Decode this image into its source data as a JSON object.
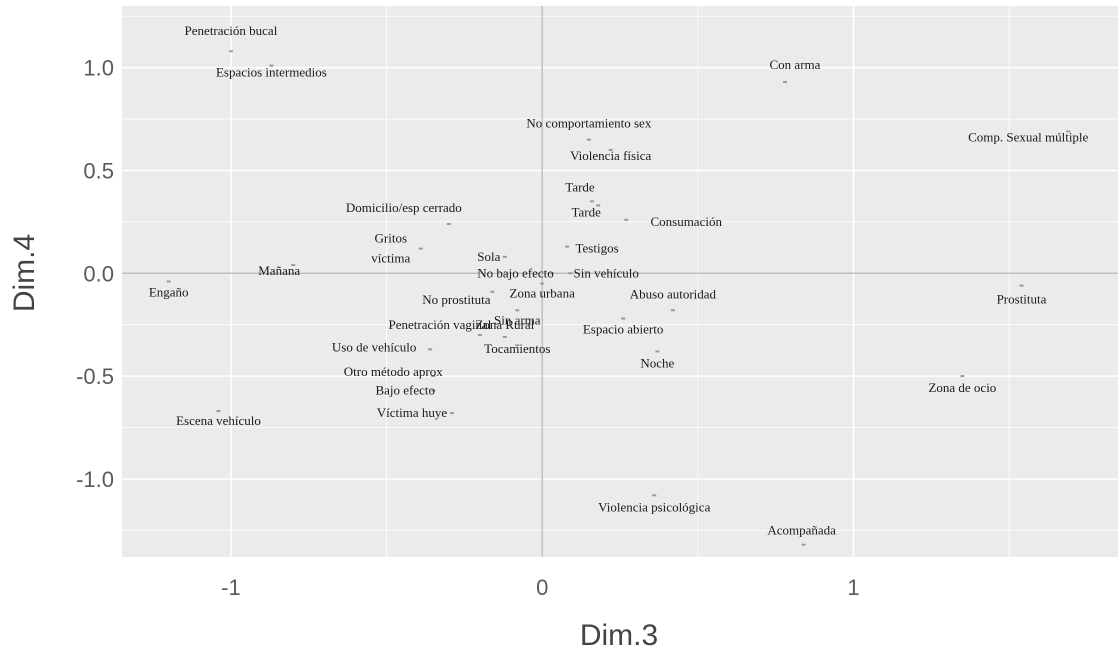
{
  "chart_data": {
    "type": "scatter",
    "title": "",
    "xlabel": "Dim.3",
    "ylabel": "Dim.4",
    "xlim": [
      -1.35,
      1.85
    ],
    "ylim": [
      -1.38,
      1.3
    ],
    "xticks": [
      -1,
      0,
      1
    ],
    "xtick_labels": [
      "-1",
      "0",
      "1"
    ],
    "yticks": [
      -1.0,
      -0.5,
      0.0,
      0.5,
      1.0
    ],
    "ytick_labels": [
      "-1.0",
      "-0.5",
      "0.0",
      "0.5",
      "1.0"
    ],
    "grid": true,
    "reference_lines": {
      "x": 0,
      "y": 0
    },
    "colors": {
      "panel": "#ebebeb",
      "grid": "#ffffff",
      "reference": "#b0b0b0",
      "point": "#9a9a9a",
      "text": "#1a1a1a"
    },
    "points": [
      {
        "label": "Penetración bucal",
        "x": -1.0,
        "y": 1.08
      },
      {
        "label": "Espacios intermedios",
        "x": -0.87,
        "y": 1.01
      },
      {
        "label": "Con arma",
        "x": 0.78,
        "y": 0.93
      },
      {
        "label": "Comp. Sexual múltiple",
        "x": 1.69,
        "y": 0.69
      },
      {
        "label": "No comportamiento sex",
        "x": 0.15,
        "y": 0.65
      },
      {
        "label": "Violencia física",
        "x": 0.22,
        "y": 0.6
      },
      {
        "label": "Tarde",
        "x": 0.16,
        "y": 0.35
      },
      {
        "label": "Tarde",
        "x": 0.18,
        "y": 0.33
      },
      {
        "label": "Consumación",
        "x": 0.27,
        "y": 0.26
      },
      {
        "label": "Domicilio/esp cerrado",
        "x": -0.3,
        "y": 0.24
      },
      {
        "label": "Gritos víctima",
        "x": -0.39,
        "y": 0.12
      },
      {
        "label": "Testigos",
        "x": 0.08,
        "y": 0.13
      },
      {
        "label": "Sola",
        "x": -0.12,
        "y": 0.08
      },
      {
        "label": "Mañana",
        "x": -0.8,
        "y": 0.04
      },
      {
        "label": "No bajo efecto",
        "x": 0.03,
        "y": 0.0
      },
      {
        "label": "Sin vehículo",
        "x": 0.09,
        "y": 0.0
      },
      {
        "label": "Engaño",
        "x": -1.2,
        "y": -0.04
      },
      {
        "label": "Zona urbana",
        "x": 0.0,
        "y": -0.05
      },
      {
        "label": "Prostituta",
        "x": 1.54,
        "y": -0.06
      },
      {
        "label": "No prostituta",
        "x": -0.16,
        "y": -0.09
      },
      {
        "label": "Abuso autoridad",
        "x": 0.42,
        "y": -0.18
      },
      {
        "label": "Sin arma",
        "x": -0.08,
        "y": -0.18
      },
      {
        "label": "Espacio abierto",
        "x": 0.26,
        "y": -0.22
      },
      {
        "label": "Penetración vaginal",
        "x": -0.2,
        "y": -0.3
      },
      {
        "label": "Zona Rural",
        "x": -0.12,
        "y": -0.31
      },
      {
        "label": "Tocamientos",
        "x": -0.08,
        "y": -0.35
      },
      {
        "label": "Uso de vehículo",
        "x": -0.36,
        "y": -0.37
      },
      {
        "label": "Noche",
        "x": 0.37,
        "y": -0.38
      },
      {
        "label": "Otro método aprox",
        "x": -0.35,
        "y": -0.5
      },
      {
        "label": "Zona de ocio",
        "x": 1.35,
        "y": -0.5
      },
      {
        "label": "Bajo efecto",
        "x": -0.35,
        "y": -0.57
      },
      {
        "label": "Víctima huye",
        "x": -0.29,
        "y": -0.68
      },
      {
        "label": "Escena vehículo",
        "x": -1.04,
        "y": -0.67
      },
      {
        "label": "Violencia psicológica",
        "x": 0.36,
        "y": -1.08
      },
      {
        "label": "Acompañada",
        "x": 0.84,
        "y": -1.32
      }
    ]
  }
}
